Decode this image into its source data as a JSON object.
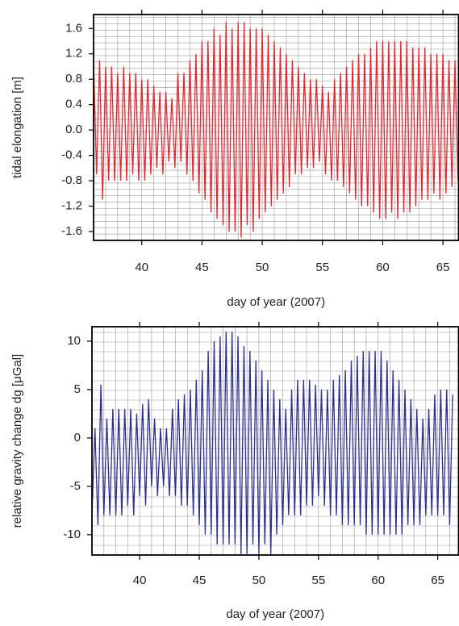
{
  "chart_data": [
    {
      "type": "line",
      "x_label": "day of year (2007)",
      "y_label": "tidal elongation [m]",
      "xlim": [
        36,
        66.3
      ],
      "ylim": [
        -1.74,
        1.82
      ],
      "xticks": [
        40,
        45,
        50,
        55,
        60,
        65
      ],
      "yticks": [
        1.6,
        1.2,
        0.8,
        0.4,
        {
          "value": 0,
          "label": "0.0"
        },
        -0.4,
        -0.8,
        -1.2,
        -1.6
      ],
      "grid": true,
      "x": [
        36,
        36.25,
        36.5,
        36.75,
        37,
        37.25,
        37.5,
        37.75,
        38,
        38.25,
        38.5,
        38.75,
        39,
        39.25,
        39.5,
        39.75,
        40,
        40.25,
        40.5,
        40.75,
        41,
        41.25,
        41.5,
        41.75,
        42,
        42.25,
        42.5,
        42.75,
        43,
        43.25,
        43.5,
        43.75,
        44,
        44.25,
        44.5,
        44.75,
        45,
        45.25,
        45.5,
        45.75,
        46,
        46.25,
        46.5,
        46.75,
        47,
        47.25,
        47.5,
        47.75,
        48,
        48.25,
        48.5,
        48.75,
        49,
        49.25,
        49.5,
        49.75,
        50,
        50.25,
        50.5,
        50.75,
        51,
        51.25,
        51.5,
        51.75,
        52,
        52.25,
        52.5,
        52.75,
        53,
        53.25,
        53.5,
        53.75,
        54,
        54.25,
        54.5,
        54.75,
        55,
        55.25,
        55.5,
        55.75,
        56,
        56.25,
        56.5,
        56.75,
        57,
        57.25,
        57.5,
        57.75,
        58,
        58.25,
        58.5,
        58.75,
        59,
        59.25,
        59.5,
        59.75,
        60,
        60.25,
        60.5,
        60.75,
        61,
        61.25,
        61.5,
        61.75,
        62,
        62.25,
        62.5,
        62.75,
        63,
        63.25,
        63.5,
        63.75,
        64,
        64.25,
        64.5,
        64.75,
        65,
        65.25,
        65.5,
        65.75,
        66,
        66.25
      ],
      "series": [
        {
          "color": "#e3262f",
          "values": [
            1.1,
            -0.7,
            1.1,
            -1.1,
            1.0,
            -0.8,
            1.0,
            -0.8,
            0.9,
            -0.8,
            1.0,
            -0.8,
            0.9,
            -0.7,
            0.9,
            -0.8,
            0.8,
            -0.8,
            0.8,
            -0.7,
            0.7,
            -0.6,
            0.6,
            -0.7,
            0.6,
            -0.5,
            0.5,
            -0.6,
            0.9,
            -0.5,
            0.9,
            -0.7,
            1.1,
            -0.8,
            1.2,
            -1.0,
            1.4,
            -1.1,
            1.4,
            -1.3,
            1.6,
            -1.4,
            1.5,
            -1.5,
            1.7,
            -1.6,
            1.6,
            -1.6,
            1.7,
            -1.7,
            1.7,
            -1.5,
            1.6,
            -1.6,
            1.6,
            -1.4,
            1.6,
            -1.3,
            1.5,
            -1.2,
            1.4,
            -1.1,
            1.3,
            -1.0,
            1.2,
            -0.9,
            1.1,
            -0.7,
            1.0,
            -0.7,
            0.9,
            -0.6,
            0.8,
            -0.6,
            0.8,
            -0.5,
            0.7,
            -0.7,
            0.6,
            -0.8,
            0.8,
            -0.8,
            0.9,
            -0.9,
            1.0,
            -1.0,
            1.1,
            -1.1,
            1.2,
            -1.2,
            1.2,
            -1.2,
            1.3,
            -1.3,
            1.4,
            -1.4,
            1.4,
            -1.4,
            1.4,
            -1.3,
            1.4,
            -1.4,
            1.4,
            -1.3,
            1.4,
            -1.3,
            1.3,
            -1.2,
            1.3,
            -1.1,
            1.3,
            -1.1,
            1.2,
            -1.0,
            1.2,
            -1.1,
            1.2,
            -1.0,
            1.1,
            -0.9,
            1.1,
            -0.8
          ]
        }
      ]
    },
    {
      "type": "line",
      "x_label": "day of year (2007)",
      "y_label": "relative gravity change dg  [μGal]",
      "xlim": [
        36,
        66.75
      ],
      "ylim": [
        -12.1,
        11.5
      ],
      "xticks": [
        40,
        45,
        50,
        55,
        60,
        65
      ],
      "yticks": [
        10,
        5,
        0,
        -5,
        -10
      ],
      "grid": true,
      "x": [
        36,
        36.25,
        36.5,
        36.75,
        37,
        37.25,
        37.5,
        37.75,
        38,
        38.25,
        38.5,
        38.75,
        39,
        39.25,
        39.5,
        39.75,
        40,
        40.25,
        40.5,
        40.75,
        41,
        41.25,
        41.5,
        41.75,
        42,
        42.25,
        42.5,
        42.75,
        43,
        43.25,
        43.5,
        43.75,
        44,
        44.25,
        44.5,
        44.75,
        45,
        45.25,
        45.5,
        45.75,
        46,
        46.25,
        46.5,
        46.75,
        47,
        47.25,
        47.5,
        47.75,
        48,
        48.25,
        48.5,
        48.75,
        49,
        49.25,
        49.5,
        49.75,
        50,
        50.25,
        50.5,
        50.75,
        51,
        51.25,
        51.5,
        51.75,
        52,
        52.25,
        52.5,
        52.75,
        53,
        53.25,
        53.5,
        53.75,
        54,
        54.25,
        54.5,
        54.75,
        55,
        55.25,
        55.5,
        55.75,
        56,
        56.25,
        56.5,
        56.75,
        57,
        57.25,
        57.5,
        57.75,
        58,
        58.25,
        58.5,
        58.75,
        59,
        59.25,
        59.5,
        59.75,
        60,
        60.25,
        60.5,
        60.75,
        61,
        61.25,
        61.5,
        61.75,
        62,
        62.25,
        62.5,
        62.75,
        63,
        63.25,
        63.5,
        63.75,
        64,
        64.25,
        64.5,
        64.75,
        65,
        65.25,
        65.5,
        65.75,
        66,
        66.25
      ],
      "series": [
        {
          "color": "#2b2f8f",
          "values": [
            -8,
            1,
            -9,
            5.5,
            -8,
            2,
            -8,
            3,
            -8,
            3,
            -8,
            3,
            -7,
            3,
            -8,
            2.5,
            -6,
            3.5,
            -7,
            4,
            -5,
            2,
            -6,
            1,
            -5,
            1,
            -6,
            3,
            -6,
            4,
            -7,
            4.5,
            -7,
            5,
            -8,
            6,
            -9,
            7,
            -10,
            9,
            -10,
            10,
            -11,
            10.5,
            -11,
            11,
            -11,
            11,
            -11,
            10.5,
            -12,
            9.5,
            -12,
            9,
            -11,
            8,
            -12,
            7,
            -11,
            6,
            -12,
            5,
            -10,
            4,
            -9,
            3,
            -8,
            5,
            -8,
            6,
            -8,
            6,
            -7,
            6,
            -7,
            5.5,
            -6,
            5,
            -7,
            5,
            -8,
            6,
            -8,
            6.5,
            -9,
            7,
            -9,
            8,
            -9,
            8.5,
            -9,
            9,
            -10,
            9,
            -10,
            9,
            -10,
            9,
            -10,
            8,
            -10,
            7,
            -10,
            6,
            -10,
            5,
            -9,
            4,
            -9,
            3,
            -9,
            2,
            -8,
            3,
            -8,
            4.5,
            -8,
            5,
            -8,
            5,
            -9,
            4.5
          ]
        }
      ]
    }
  ]
}
